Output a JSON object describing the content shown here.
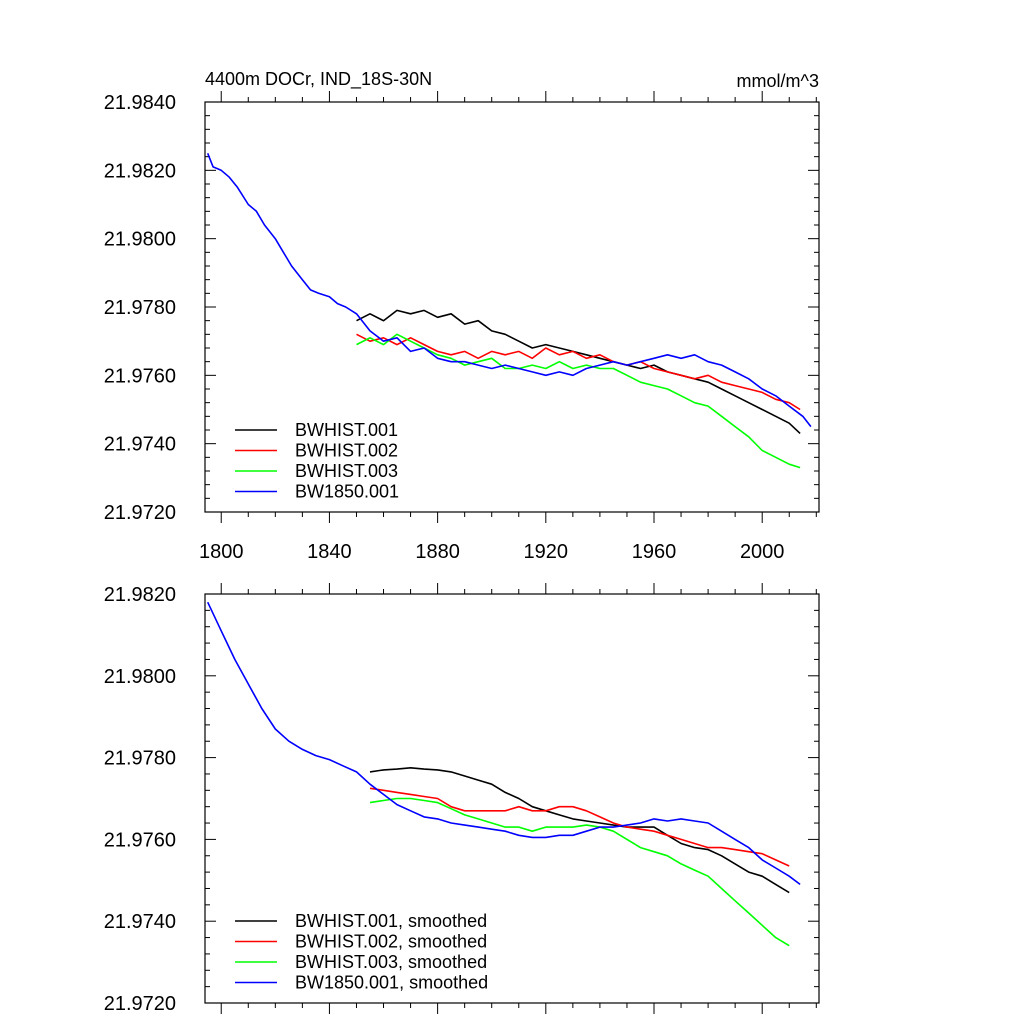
{
  "chart_data": [
    {
      "type": "line",
      "title": "4400m DOCr, IND_18S-30N",
      "units_label": "mmol/m^3",
      "xlabel": "",
      "ylabel": "",
      "xlim": [
        1794,
        2021
      ],
      "ylim": [
        21.972,
        21.984
      ],
      "xticks": [
        1800,
        1840,
        1880,
        1920,
        1960,
        2000
      ],
      "xtick_labels": [
        "1800",
        "1840",
        "1880",
        "1920",
        "1960",
        "2000"
      ],
      "yticks": [
        21.972,
        21.974,
        21.976,
        21.978,
        21.98,
        21.982,
        21.984
      ],
      "ytick_labels": [
        "21.9720",
        "21.9740",
        "21.9760",
        "21.9780",
        "21.9800",
        "21.9820",
        "21.9840"
      ],
      "legend_position": "bottom-left",
      "series": [
        {
          "name": "BWHIST.001",
          "color": "#000000",
          "x": [
            1850,
            1855,
            1860,
            1865,
            1870,
            1875,
            1880,
            1885,
            1890,
            1895,
            1900,
            1905,
            1910,
            1915,
            1920,
            1925,
            1930,
            1935,
            1940,
            1945,
            1950,
            1955,
            1960,
            1965,
            1970,
            1975,
            1980,
            1985,
            1990,
            1995,
            2000,
            2005,
            2010,
            2014
          ],
          "y": [
            21.9776,
            21.9778,
            21.9776,
            21.9779,
            21.9778,
            21.9779,
            21.9777,
            21.9778,
            21.9775,
            21.9776,
            21.9773,
            21.9772,
            21.977,
            21.9768,
            21.9769,
            21.9768,
            21.9767,
            21.9766,
            21.9765,
            21.9764,
            21.9763,
            21.9762,
            21.9763,
            21.9761,
            21.976,
            21.9759,
            21.9758,
            21.9756,
            21.9754,
            21.9752,
            21.975,
            21.9748,
            21.9746,
            21.9743
          ]
        },
        {
          "name": "BWHIST.002",
          "color": "#ff0000",
          "x": [
            1850,
            1855,
            1860,
            1865,
            1870,
            1875,
            1880,
            1885,
            1890,
            1895,
            1900,
            1905,
            1910,
            1915,
            1920,
            1925,
            1930,
            1935,
            1940,
            1945,
            1950,
            1955,
            1960,
            1965,
            1970,
            1975,
            1980,
            1985,
            1990,
            1995,
            2000,
            2005,
            2010,
            2014
          ],
          "y": [
            21.9772,
            21.977,
            21.9771,
            21.9769,
            21.9771,
            21.9769,
            21.9767,
            21.9766,
            21.9767,
            21.9765,
            21.9767,
            21.9766,
            21.9767,
            21.9765,
            21.9768,
            21.9766,
            21.9767,
            21.9765,
            21.9766,
            21.9764,
            21.9763,
            21.9764,
            21.9762,
            21.9761,
            21.976,
            21.9759,
            21.976,
            21.9758,
            21.9757,
            21.9756,
            21.9755,
            21.9753,
            21.9752,
            21.975
          ]
        },
        {
          "name": "BWHIST.003",
          "color": "#00ff00",
          "x": [
            1850,
            1855,
            1860,
            1865,
            1870,
            1875,
            1880,
            1885,
            1890,
            1895,
            1900,
            1905,
            1910,
            1915,
            1920,
            1925,
            1930,
            1935,
            1940,
            1945,
            1950,
            1955,
            1960,
            1965,
            1970,
            1975,
            1980,
            1985,
            1990,
            1995,
            2000,
            2005,
            2010,
            2014
          ],
          "y": [
            21.9769,
            21.9771,
            21.9769,
            21.9772,
            21.977,
            21.9768,
            21.9766,
            21.9765,
            21.9763,
            21.9764,
            21.9765,
            21.9762,
            21.9762,
            21.9763,
            21.9762,
            21.9764,
            21.9762,
            21.9763,
            21.9762,
            21.9762,
            21.976,
            21.9758,
            21.9757,
            21.9756,
            21.9754,
            21.9752,
            21.9751,
            21.9748,
            21.9745,
            21.9742,
            21.9738,
            21.9736,
            21.9734,
            21.9733
          ]
        },
        {
          "name": "BW1850.001",
          "color": "#0000ff",
          "x": [
            1795,
            1797,
            1800,
            1803,
            1806,
            1810,
            1813,
            1816,
            1820,
            1823,
            1826,
            1830,
            1833,
            1836,
            1840,
            1843,
            1846,
            1850,
            1855,
            1860,
            1865,
            1870,
            1875,
            1880,
            1885,
            1890,
            1895,
            1900,
            1905,
            1910,
            1915,
            1920,
            1925,
            1930,
            1935,
            1940,
            1945,
            1950,
            1955,
            1960,
            1965,
            1970,
            1975,
            1980,
            1985,
            1990,
            1995,
            2000,
            2005,
            2010,
            2015,
            2018
          ],
          "y": [
            21.9825,
            21.9821,
            21.982,
            21.9818,
            21.9815,
            21.981,
            21.9808,
            21.9804,
            21.98,
            21.9796,
            21.9792,
            21.9788,
            21.9785,
            21.9784,
            21.9783,
            21.9781,
            21.978,
            21.9778,
            21.9773,
            21.977,
            21.9771,
            21.9767,
            21.9768,
            21.9765,
            21.9764,
            21.9764,
            21.9763,
            21.9762,
            21.9763,
            21.9762,
            21.9761,
            21.976,
            21.9761,
            21.976,
            21.9762,
            21.9763,
            21.9764,
            21.9763,
            21.9764,
            21.9765,
            21.9766,
            21.9765,
            21.9766,
            21.9764,
            21.9763,
            21.9761,
            21.9759,
            21.9756,
            21.9754,
            21.9751,
            21.9748,
            21.9745
          ]
        }
      ]
    },
    {
      "type": "line",
      "title": "",
      "xlabel": "",
      "ylabel": "",
      "xlim": [
        1794,
        2021
      ],
      "ylim": [
        21.972,
        21.982
      ],
      "xticks": [
        1800,
        1840,
        1880,
        1920,
        1960,
        2000
      ],
      "yticks": [
        21.972,
        21.974,
        21.976,
        21.978,
        21.98,
        21.982
      ],
      "ytick_labels": [
        "21.9720",
        "21.9740",
        "21.9760",
        "21.9780",
        "21.9800",
        "21.9820"
      ],
      "legend_position": "bottom-left",
      "series": [
        {
          "name": "BWHIST.001, smoothed",
          "color": "#000000",
          "x": [
            1855,
            1860,
            1865,
            1870,
            1875,
            1880,
            1885,
            1890,
            1895,
            1900,
            1905,
            1910,
            1915,
            1920,
            1925,
            1930,
            1935,
            1940,
            1945,
            1950,
            1955,
            1960,
            1965,
            1970,
            1975,
            1980,
            1985,
            1990,
            1995,
            2000,
            2005,
            2010
          ],
          "y": [
            21.97765,
            21.9777,
            21.97772,
            21.97775,
            21.97772,
            21.9777,
            21.97765,
            21.97755,
            21.97745,
            21.97735,
            21.97715,
            21.977,
            21.9768,
            21.9767,
            21.9766,
            21.9765,
            21.97645,
            21.9764,
            21.97635,
            21.9763,
            21.9763,
            21.9763,
            21.9761,
            21.9759,
            21.9758,
            21.97575,
            21.9756,
            21.9754,
            21.9752,
            21.9751,
            21.9749,
            21.9747
          ]
        },
        {
          "name": "BWHIST.002, smoothed",
          "color": "#ff0000",
          "x": [
            1855,
            1860,
            1865,
            1870,
            1875,
            1880,
            1885,
            1890,
            1895,
            1900,
            1905,
            1910,
            1915,
            1920,
            1925,
            1930,
            1935,
            1940,
            1945,
            1950,
            1955,
            1960,
            1965,
            1970,
            1975,
            1980,
            1985,
            1990,
            1995,
            2000,
            2005,
            2010
          ],
          "y": [
            21.97725,
            21.9772,
            21.97715,
            21.9771,
            21.97705,
            21.977,
            21.9768,
            21.9767,
            21.9767,
            21.9767,
            21.9767,
            21.9768,
            21.9767,
            21.9767,
            21.9768,
            21.9768,
            21.9767,
            21.97655,
            21.9764,
            21.9763,
            21.97625,
            21.9762,
            21.9761,
            21.976,
            21.9759,
            21.9758,
            21.9758,
            21.97575,
            21.9757,
            21.97565,
            21.9755,
            21.97535
          ]
        },
        {
          "name": "BWHIST.003, smoothed",
          "color": "#00ff00",
          "x": [
            1855,
            1860,
            1865,
            1870,
            1875,
            1880,
            1885,
            1890,
            1895,
            1900,
            1905,
            1910,
            1915,
            1920,
            1925,
            1930,
            1935,
            1940,
            1945,
            1950,
            1955,
            1960,
            1965,
            1970,
            1975,
            1980,
            1985,
            1990,
            1995,
            2000,
            2005,
            2010
          ],
          "y": [
            21.9769,
            21.97695,
            21.977,
            21.977,
            21.97695,
            21.9769,
            21.97675,
            21.9766,
            21.9765,
            21.9764,
            21.9763,
            21.9763,
            21.9762,
            21.9763,
            21.9763,
            21.9763,
            21.97635,
            21.9763,
            21.9762,
            21.976,
            21.9758,
            21.9757,
            21.9756,
            21.9754,
            21.97525,
            21.9751,
            21.9748,
            21.9745,
            21.9742,
            21.9739,
            21.9736,
            21.9734
          ]
        },
        {
          "name": "BW1850.001, smoothed",
          "color": "#0000ff",
          "x": [
            1795,
            1800,
            1805,
            1810,
            1815,
            1820,
            1825,
            1830,
            1835,
            1840,
            1845,
            1850,
            1855,
            1860,
            1865,
            1870,
            1875,
            1880,
            1885,
            1890,
            1895,
            1900,
            1905,
            1910,
            1915,
            1920,
            1925,
            1930,
            1935,
            1940,
            1945,
            1950,
            1955,
            1960,
            1965,
            1970,
            1975,
            1980,
            1985,
            1990,
            1995,
            2000,
            2005,
            2010,
            2014
          ],
          "y": [
            21.9818,
            21.9811,
            21.9804,
            21.9798,
            21.9792,
            21.9787,
            21.9784,
            21.9782,
            21.97805,
            21.97795,
            21.9778,
            21.97765,
            21.97735,
            21.9771,
            21.97685,
            21.9767,
            21.97655,
            21.9765,
            21.9764,
            21.97635,
            21.9763,
            21.97625,
            21.9762,
            21.9761,
            21.97605,
            21.97605,
            21.9761,
            21.9761,
            21.9762,
            21.9763,
            21.9763,
            21.97635,
            21.9764,
            21.9765,
            21.97645,
            21.9765,
            21.97645,
            21.9764,
            21.9762,
            21.976,
            21.9758,
            21.9755,
            21.9753,
            21.9751,
            21.9749
          ]
        }
      ]
    }
  ]
}
